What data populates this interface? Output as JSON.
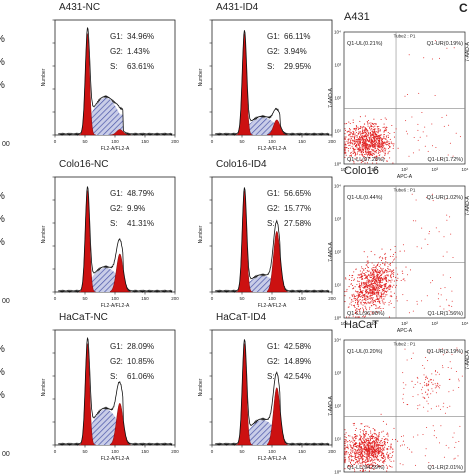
{
  "panel_letter": "C",
  "histogram_axis": {
    "xlabel": "FL2-A/FL2-A",
    "ylabel": "Number",
    "xticks": [
      "0",
      "50",
      "100",
      "150",
      "200"
    ]
  },
  "flow_axis": {
    "xlabel": "APC-A",
    "ylabel": "7-AAD-A",
    "ticks": [
      "10⁰",
      "10¹",
      "10²",
      "10³",
      "10⁴"
    ]
  },
  "left_stub_texts": [
    {
      "row": 0,
      "items": [
        "%",
        "%",
        "%"
      ]
    },
    {
      "row": 1,
      "items": [
        "%",
        "%",
        "%"
      ]
    },
    {
      "row": 2,
      "items": [
        "%",
        "%",
        "%"
      ]
    }
  ],
  "left_stub_ticks": [
    {
      "row": 0,
      "items": [
        "00"
      ]
    },
    {
      "row": 1,
      "items": [
        "00"
      ]
    },
    {
      "row": 2,
      "items": [
        "00"
      ]
    }
  ],
  "colors": {
    "g1_fill": "#cc1111",
    "s_hatch": "#4a55a8",
    "curve": "#111111",
    "scatter": "#e02020",
    "grid": "#888888"
  },
  "chart_data": [
    {
      "type": "area",
      "title": "A431-NC",
      "stats": [
        {
          "label": "G1:",
          "value": "34.96%"
        },
        {
          "label": "G2:",
          "value": "1.43%"
        },
        {
          "label": "S:",
          "value": "63.61%"
        }
      ],
      "g1": 34.96,
      "g2": 1.43,
      "s": 63.61
    },
    {
      "type": "area",
      "title": "A431-ID4",
      "stats": [
        {
          "label": "G1:",
          "value": "66.11%"
        },
        {
          "label": "G2:",
          "value": "3.94%"
        },
        {
          "label": "S:",
          "value": "29.95%"
        }
      ],
      "g1": 66.11,
      "g2": 3.94,
      "s": 29.95
    },
    {
      "type": "area",
      "title": "Colo16-NC",
      "stats": [
        {
          "label": "G1:",
          "value": "48.79%"
        },
        {
          "label": "G2:",
          "value": "9.9%"
        },
        {
          "label": "S:",
          "value": "41.31%"
        }
      ],
      "g1": 48.79,
      "g2": 9.9,
      "s": 41.31
    },
    {
      "type": "area",
      "title": "Colo16-ID4",
      "stats": [
        {
          "label": "G1:",
          "value": "56.65%"
        },
        {
          "label": "G2:",
          "value": "15.77%"
        },
        {
          "label": "S:",
          "value": "27.58%"
        }
      ],
      "g1": 56.65,
      "g2": 15.77,
      "s": 27.58
    },
    {
      "type": "area",
      "title": "HaCaT-NC",
      "stats": [
        {
          "label": "G1:",
          "value": "28.09%"
        },
        {
          "label": "G2:",
          "value": "10.85%"
        },
        {
          "label": "S:",
          "value": "61.06%"
        }
      ],
      "g1": 28.09,
      "g2": 10.85,
      "s": 61.06
    },
    {
      "type": "area",
      "title": "HaCaT-ID4",
      "stats": [
        {
          "label": "G1:",
          "value": "42.58%"
        },
        {
          "label": "G2:",
          "value": "14.89%"
        },
        {
          "label": "S:",
          "value": "42.54%"
        }
      ],
      "g1": 42.58,
      "g2": 14.89,
      "s": 42.54
    },
    {
      "type": "scatter",
      "title": "A431",
      "tube": "Tube2 : P1",
      "quadrants": {
        "ul": "Q1-UL(0.21%)",
        "ur": "Q1-UR(0.19%)",
        "ll": "Q1-LL(97.28%)",
        "lr": "Q1-LR(1.72%)"
      },
      "ur_pct": 0.19,
      "lr_pct": 1.72
    },
    {
      "type": "scatter",
      "title": "Colo16",
      "tube": "Tube6 : P1",
      "quadrants": {
        "ul": "Q1-UL(0.44%)",
        "ur": "Q1-UR(1.02%)",
        "ll": "Q1-LL(96.98%)",
        "lr": "Q1-LR(1.56%)"
      },
      "ur_pct": 1.02,
      "lr_pct": 1.56
    },
    {
      "type": "scatter",
      "title": "HaCaT",
      "tube": "Tube2 : P1",
      "quadrants": {
        "ul": "Q1-UL(0.20%)",
        "ur": "Q1-UR(3.19%)",
        "ll": "Q1-LL(94.59%)",
        "lr": "Q1-LR(2.01%)"
      },
      "ur_pct": 3.19,
      "lr_pct": 2.01
    }
  ]
}
